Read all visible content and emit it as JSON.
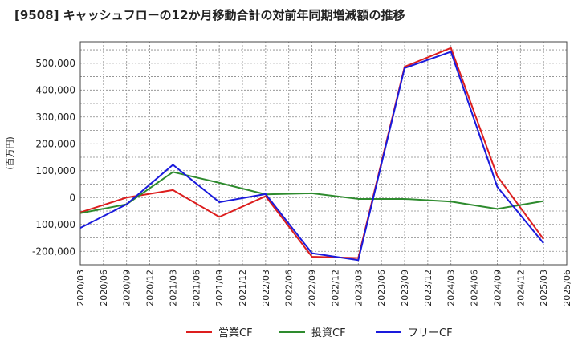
{
  "chart_data": {
    "type": "line",
    "title": "[9508]  キャッシュフローの12か月移動合計の対前年同期増減額の推移",
    "ylabel": "(百万円)",
    "xlabel": "",
    "ylim": [
      -250000,
      580000
    ],
    "yticks": [
      -200000,
      -100000,
      0,
      100000,
      200000,
      300000,
      400000,
      500000
    ],
    "ytick_labels": [
      "-200,000",
      "-100,000",
      "0",
      "100,000",
      "200,000",
      "300,000",
      "400,000",
      "500,000"
    ],
    "x_labels": [
      "2020/03",
      "2020/06",
      "2020/09",
      "2020/12",
      "2021/03",
      "2021/06",
      "2021/09",
      "2021/12",
      "2022/03",
      "2022/06",
      "2022/09",
      "2022/12",
      "2023/03",
      "2023/06",
      "2023/09",
      "2023/12",
      "2024/03",
      "2024/06",
      "2024/09",
      "2024/12",
      "2025/03",
      "2025/06"
    ],
    "grid": true,
    "legend_position": "bottom",
    "series": [
      {
        "name": "営業CF",
        "color": "#dd1e1e",
        "x": [
          0,
          2,
          4,
          6,
          8,
          10,
          12,
          14,
          16,
          18,
          20
        ],
        "values": [
          -55000,
          0,
          28000,
          -72000,
          5000,
          -220000,
          -225000,
          487000,
          557000,
          80000,
          -155000
        ]
      },
      {
        "name": "投資CF",
        "color": "#2e8b2e",
        "x": [
          0,
          2,
          4,
          6,
          8,
          10,
          12,
          14,
          16,
          18,
          20
        ],
        "values": [
          -58000,
          -25000,
          95000,
          55000,
          12000,
          16000,
          -5000,
          -5000,
          -15000,
          -42000,
          -13000
        ]
      },
      {
        "name": "フリーCF",
        "color": "#1a1adc",
        "x": [
          0,
          2,
          4,
          6,
          8,
          10,
          12,
          14,
          16,
          18,
          20
        ],
        "values": [
          -113000,
          -25000,
          122000,
          -17000,
          13000,
          -207000,
          -233000,
          482000,
          543000,
          40000,
          -170000
        ]
      }
    ]
  }
}
